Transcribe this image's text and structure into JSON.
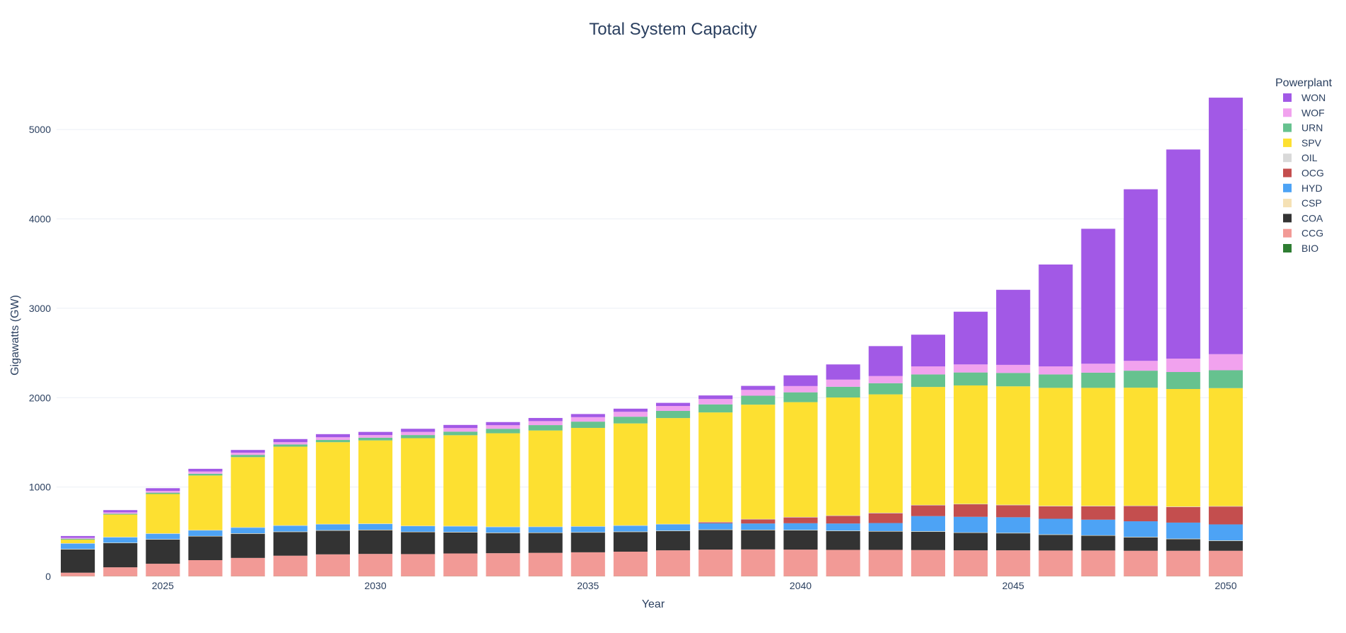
{
  "chart_data": {
    "type": "bar",
    "stacked": true,
    "title": "Total System Capacity",
    "xlabel": "Year",
    "ylabel": "Gigawatts (GW)",
    "ylim": [
      0,
      5500
    ],
    "y_ticks": [
      0,
      1000,
      2000,
      3000,
      4000,
      5000
    ],
    "x_ticks": [
      2025,
      2030,
      2035,
      2040,
      2045,
      2050
    ],
    "grid": true,
    "legend": {
      "title": "Powerplant",
      "position": "right",
      "order": [
        "WON",
        "WOF",
        "URN",
        "SPV",
        "OIL",
        "OCG",
        "HYD",
        "CSP",
        "COA",
        "CCG",
        "BIO"
      ]
    },
    "categories": [
      2023,
      2024,
      2025,
      2026,
      2027,
      2028,
      2029,
      2030,
      2031,
      2032,
      2033,
      2034,
      2035,
      2036,
      2037,
      2038,
      2039,
      2040,
      2041,
      2042,
      2043,
      2044,
      2045,
      2046,
      2047,
      2048,
      2049,
      2050
    ],
    "series": [
      {
        "name": "BIO",
        "color": "#2e7d32",
        "values": [
          2,
          2,
          2,
          2,
          2,
          2,
          2,
          2,
          2,
          2,
          2,
          2,
          2,
          2,
          2,
          2,
          2,
          2,
          2,
          2,
          2,
          2,
          2,
          2,
          2,
          2,
          2,
          2
        ]
      },
      {
        "name": "CCG",
        "color": "#f29a96",
        "values": [
          40,
          100,
          140,
          180,
          205,
          230,
          245,
          250,
          248,
          255,
          258,
          262,
          268,
          275,
          290,
          298,
          300,
          298,
          295,
          295,
          293,
          290,
          290,
          288,
          288,
          285,
          285,
          285
        ]
      },
      {
        "name": "COA",
        "color": "#333333",
        "values": [
          260,
          270,
          270,
          265,
          270,
          265,
          265,
          265,
          245,
          235,
          225,
          222,
          220,
          220,
          215,
          220,
          215,
          215,
          210,
          205,
          205,
          195,
          190,
          175,
          165,
          150,
          130,
          110
        ]
      },
      {
        "name": "CSP",
        "color": "#f5e1b5",
        "values": [
          5,
          5,
          5,
          5,
          5,
          5,
          5,
          5,
          5,
          5,
          5,
          5,
          5,
          5,
          5,
          5,
          5,
          5,
          5,
          5,
          5,
          5,
          5,
          5,
          5,
          5,
          5,
          5
        ]
      },
      {
        "name": "HYD",
        "color": "#4da3f5",
        "values": [
          60,
          60,
          60,
          62,
          63,
          65,
          65,
          65,
          62,
          63,
          62,
          62,
          62,
          65,
          70,
          70,
          70,
          75,
          80,
          90,
          170,
          175,
          175,
          175,
          175,
          175,
          180,
          180
        ]
      },
      {
        "name": "OCG",
        "color": "#c44e4e",
        "values": [
          0,
          0,
          0,
          0,
          0,
          0,
          0,
          0,
          0,
          0,
          0,
          0,
          0,
          0,
          0,
          10,
          45,
          65,
          85,
          110,
          120,
          140,
          135,
          140,
          150,
          170,
          175,
          200
        ]
      },
      {
        "name": "OIL",
        "color": "#d9d9d9",
        "values": [
          5,
          5,
          5,
          5,
          5,
          5,
          5,
          5,
          5,
          5,
          5,
          5,
          5,
          5,
          5,
          5,
          5,
          5,
          5,
          5,
          5,
          5,
          5,
          5,
          5,
          5,
          5,
          5
        ]
      },
      {
        "name": "SPV",
        "color": "#fde031",
        "values": [
          40,
          250,
          440,
          610,
          785,
          880,
          915,
          930,
          980,
          1015,
          1045,
          1075,
          1100,
          1140,
          1185,
          1225,
          1280,
          1285,
          1320,
          1325,
          1320,
          1325,
          1325,
          1320,
          1320,
          1320,
          1315,
          1320
        ]
      },
      {
        "name": "URN",
        "color": "#66c28f",
        "values": [
          10,
          10,
          15,
          20,
          25,
          25,
          25,
          30,
          35,
          40,
          50,
          60,
          70,
          75,
          80,
          90,
          100,
          110,
          120,
          125,
          140,
          145,
          150,
          150,
          170,
          190,
          190,
          200
        ]
      },
      {
        "name": "WOF",
        "color": "#f1a2ee",
        "values": [
          10,
          15,
          20,
          25,
          25,
          25,
          30,
          30,
          35,
          40,
          40,
          45,
          50,
          55,
          55,
          60,
          65,
          70,
          80,
          80,
          90,
          90,
          90,
          90,
          100,
          110,
          150,
          180
        ]
      },
      {
        "name": "WON",
        "color": "#a259e6",
        "values": [
          20,
          25,
          30,
          30,
          30,
          35,
          35,
          35,
          35,
          35,
          35,
          35,
          35,
          35,
          35,
          40,
          45,
          120,
          170,
          335,
          355,
          590,
          840,
          1140,
          1510,
          1920,
          2340,
          2870
        ]
      }
    ]
  }
}
